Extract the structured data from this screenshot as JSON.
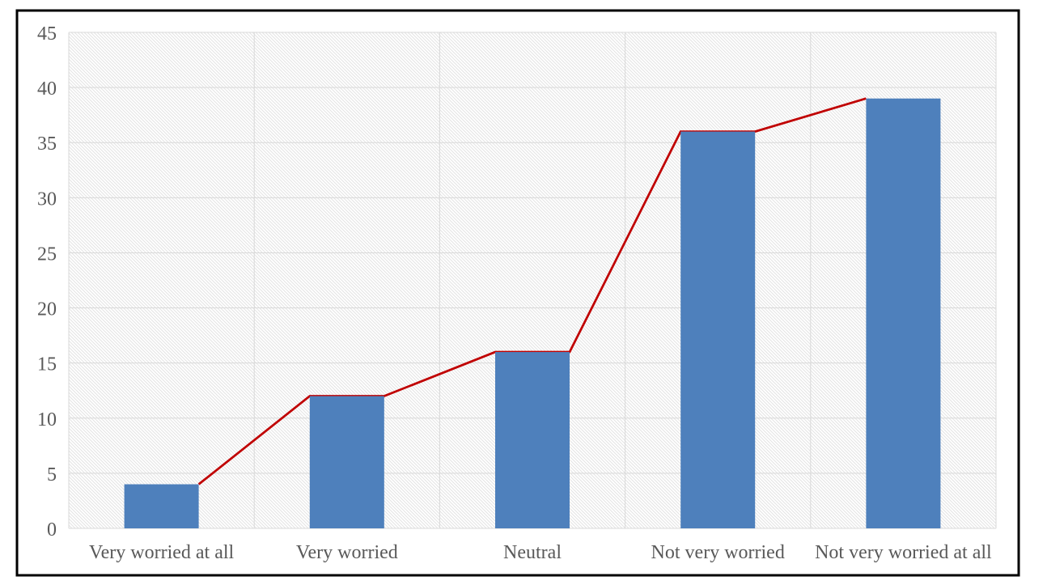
{
  "chart_data": {
    "type": "bar",
    "subtype": "bar-with-line-overlay",
    "title": "",
    "xlabel": "",
    "ylabel": "",
    "categories": [
      "Very worried at all",
      "Very worried",
      "Neutral",
      "Not very worried",
      "Not very worried at all"
    ],
    "series": [
      {
        "type": "bar",
        "values": [
          4,
          12,
          16,
          36,
          39
        ]
      },
      {
        "type": "line",
        "values": [
          4,
          12,
          16,
          36,
          39
        ]
      }
    ],
    "ylim": [
      0,
      45
    ],
    "yticks": [
      0,
      5,
      10,
      15,
      20,
      25,
      30,
      35,
      40,
      45
    ],
    "grid": true,
    "legend": false,
    "plot_background": "diagonal-hatch"
  },
  "style": {
    "bar_color": "#4E80BC",
    "line_color": "#C00000",
    "gridline_color": "#D9D9D9",
    "hatch_line_color": "#E3E3E3",
    "label_color": "#595959",
    "frame_border_color": "#000000",
    "background_color": "#FFFFFF"
  }
}
